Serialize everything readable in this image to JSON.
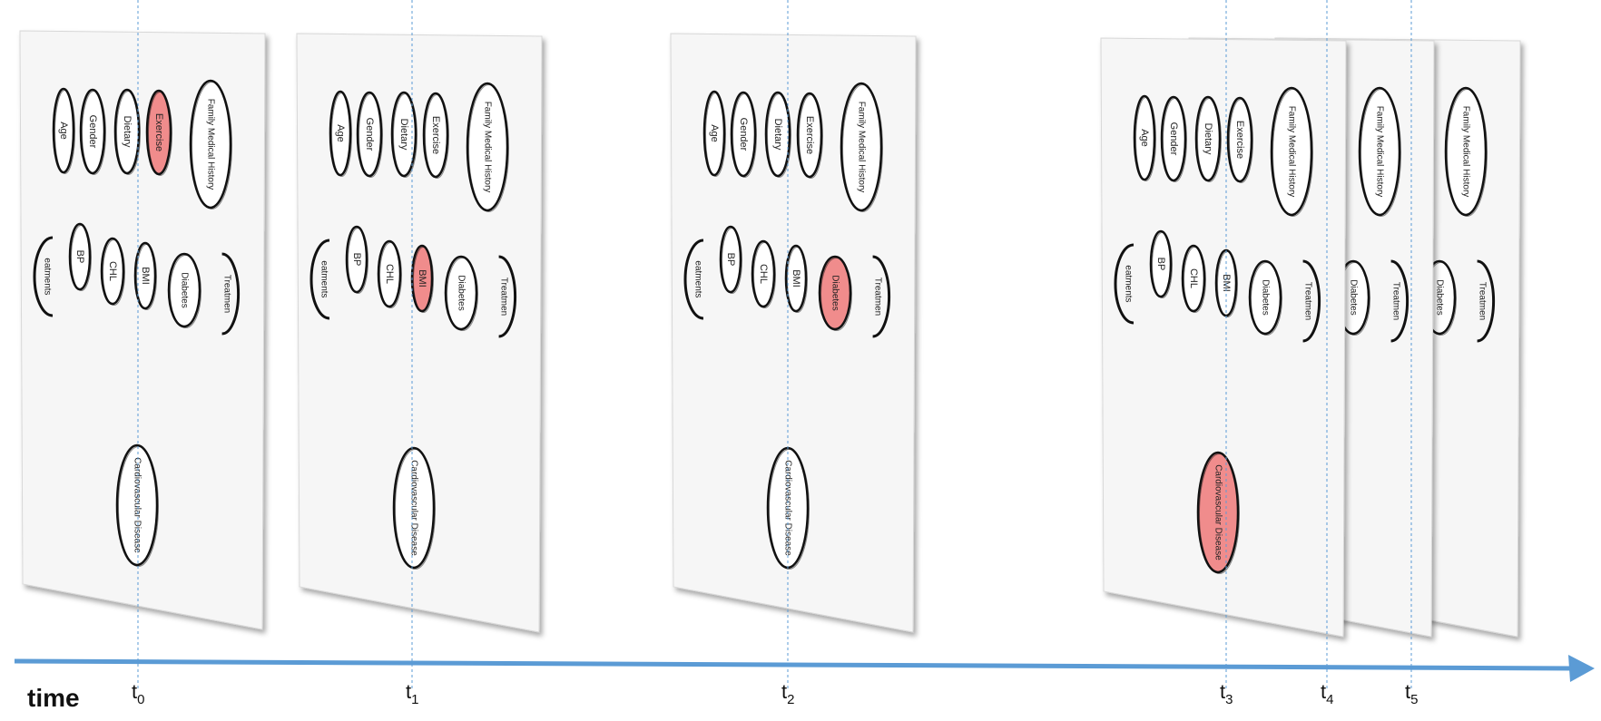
{
  "diagram": {
    "title": "",
    "time_label": "time",
    "time_points": [
      {
        "id": "t0",
        "base": "t",
        "sub": "0"
      },
      {
        "id": "t1",
        "base": "t",
        "sub": "1"
      },
      {
        "id": "t2",
        "base": "t",
        "sub": "2"
      },
      {
        "id": "t3",
        "base": "t",
        "sub": "3"
      },
      {
        "id": "t4",
        "base": "t",
        "sub": "4"
      },
      {
        "id": "t5",
        "base": "t",
        "sub": "5"
      }
    ],
    "nodes": [
      {
        "id": "age",
        "label": "Age"
      },
      {
        "id": "gender",
        "label": "Gender"
      },
      {
        "id": "dietary",
        "label": "Dietary"
      },
      {
        "id": "exercise",
        "label": "Exercise"
      },
      {
        "id": "family",
        "label": "Family Medical History"
      },
      {
        "id": "treatments",
        "label": "eatments"
      },
      {
        "id": "bp",
        "label": "BP"
      },
      {
        "id": "chl",
        "label": "CHL"
      },
      {
        "id": "bmi",
        "label": "BMI"
      },
      {
        "id": "diabetes",
        "label": "Diabetes"
      },
      {
        "id": "treatment",
        "label": "Treatmen"
      },
      {
        "id": "cvd",
        "label": "Cardiovascular Disease"
      }
    ],
    "slices": [
      {
        "time": "t0",
        "highlighted": "exercise"
      },
      {
        "time": "t1",
        "highlighted": "bmi"
      },
      {
        "time": "t2",
        "highlighted": "diabetes"
      },
      {
        "time": "t3",
        "highlighted": "cvd"
      },
      {
        "time": "t4",
        "highlighted": ""
      },
      {
        "time": "t5",
        "highlighted": ""
      }
    ],
    "colors": {
      "highlight": "#f08c8c",
      "arrow": "#5b9bd5",
      "guide": "#5b9bd5",
      "panel": "#f6f6f6"
    }
  }
}
